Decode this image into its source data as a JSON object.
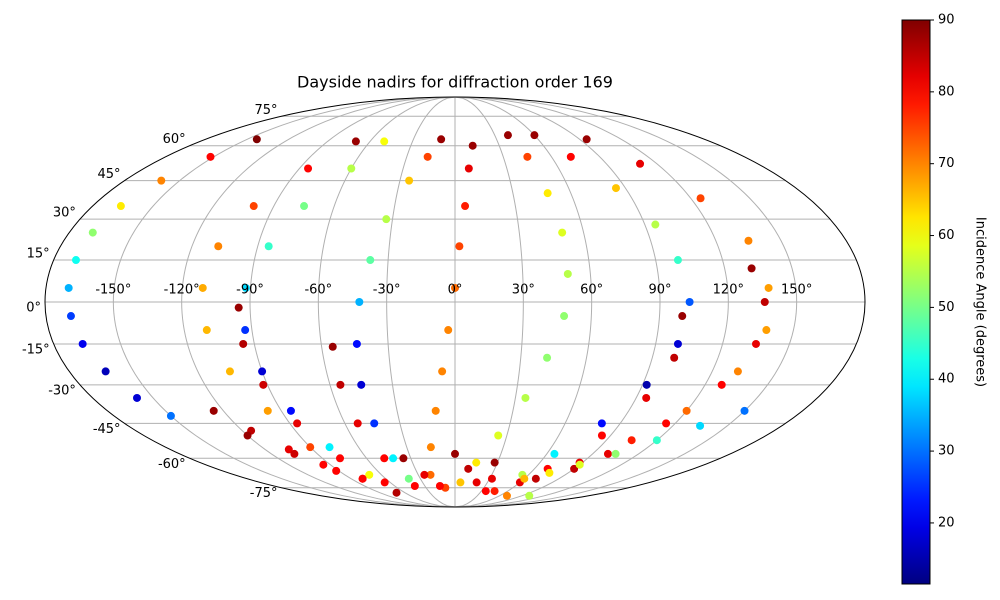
{
  "chart_data": {
    "type": "scatter",
    "projection": "mollweide",
    "title": "Dayside nadirs for diffraction order 169",
    "xlim": [
      -180,
      180
    ],
    "ylim": [
      -90,
      90
    ],
    "xticks": [
      {
        "value": -150,
        "label": "-150°"
      },
      {
        "value": -120,
        "label": "-120°"
      },
      {
        "value": -90,
        "label": "-90°"
      },
      {
        "value": -60,
        "label": "-60°"
      },
      {
        "value": -30,
        "label": "-30°"
      },
      {
        "value": 0,
        "label": "0°"
      },
      {
        "value": 30,
        "label": "30°"
      },
      {
        "value": 60,
        "label": "60°"
      },
      {
        "value": 90,
        "label": "90°"
      },
      {
        "value": 120,
        "label": "120°"
      },
      {
        "value": 150,
        "label": "150°"
      }
    ],
    "yticks": [
      {
        "value": -75,
        "label": "-75°"
      },
      {
        "value": -60,
        "label": "-60°"
      },
      {
        "value": -45,
        "label": "-45°"
      },
      {
        "value": -30,
        "label": "-30°"
      },
      {
        "value": -15,
        "label": "-15°"
      },
      {
        "value": 0,
        "label": "0°"
      },
      {
        "value": 15,
        "label": "15°"
      },
      {
        "value": 30,
        "label": "30°"
      },
      {
        "value": 45,
        "label": "45°"
      },
      {
        "value": 60,
        "label": "60°"
      },
      {
        "value": 75,
        "label": "75°"
      }
    ],
    "grid": true,
    "colormap": "jet",
    "clim": [
      11.5,
      90
    ],
    "cticks": [
      20,
      30,
      40,
      50,
      60,
      70,
      80,
      90
    ],
    "cbar_label": "Incidence Angle (degrees)",
    "series": [
      {
        "x": [
          -143,
          -152,
          -160,
          -166,
          -169,
          -170,
          -170,
          -169,
          -167,
          -163,
          -158,
          -150
        ],
        "values": [
          63,
          55,
          45,
          35,
          25,
          15,
          5,
          -5,
          -15,
          -25,
          -35,
          -42
        ],
        "c": [
          90,
          80,
          70,
          62,
          52,
          42,
          35,
          26,
          20,
          16,
          18,
          30
        ]
      },
      {
        "x": [
          -70,
          -85,
          -100,
          -108,
          -111,
          -110,
          -105,
          -97,
          -90,
          -80,
          -70
        ],
        "values": [
          62,
          50,
          35,
          20,
          5,
          -10,
          -25,
          -40,
          -55,
          -70,
          -78
        ],
        "c": [
          88,
          80,
          75,
          70,
          67,
          66,
          66,
          68,
          75,
          82,
          86
        ]
      },
      {
        "x": [
          -50,
          -60,
          -75,
          -85,
          -92,
          -93,
          -90,
          -85,
          -78,
          -70
        ],
        "values": [
          62,
          50,
          35,
          20,
          5,
          -10,
          -25,
          -40,
          -55,
          -68
        ],
        "c": [
          60,
          55,
          50,
          45,
          38,
          25,
          18,
          22,
          40,
          60
        ]
      },
      {
        "x": [
          -95,
          -95,
          -92,
          -86,
          -78,
          -65
        ],
        "values": [
          -2,
          -15,
          -30,
          -45,
          -60,
          -72
        ],
        "c": [
          88,
          86,
          84,
          82,
          80,
          80
        ]
      },
      {
        "x": [
          -55,
          -55,
          -53,
          -48,
          -40
        ],
        "values": [
          -16,
          -30,
          -45,
          -60,
          -74
        ],
        "c": [
          88,
          85,
          82,
          80,
          80
        ]
      },
      {
        "x": [
          -10,
          -17,
          -25,
          -33,
          -38,
          -42,
          -44,
          -45,
          -44,
          -42,
          -40
        ],
        "values": [
          63,
          55,
          45,
          30,
          15,
          0,
          -15,
          -30,
          -45,
          -60,
          -70
        ],
        "c": [
          88,
          75,
          65,
          55,
          48,
          35,
          22,
          18,
          25,
          40,
          50
        ]
      },
      {
        "x": [
          12,
          8,
          5,
          2,
          0,
          -3,
          -6,
          -10,
          -15,
          -20,
          -10
        ],
        "values": [
          60,
          50,
          35,
          20,
          5,
          -10,
          -25,
          -40,
          -55,
          -68,
          -75
        ],
        "c": [
          88,
          82,
          78,
          75,
          72,
          70,
          70,
          70,
          70,
          72,
          75
        ]
      },
      {
        "x": [
          0,
          10,
          20,
          35
        ],
        "values": [
          -58,
          -65,
          -72,
          -77
        ],
        "c": [
          88,
          85,
          82,
          80
        ]
      },
      {
        "x": [
          40,
          45,
          48,
          50,
          50,
          48,
          42,
          35,
          25,
          15,
          5
        ],
        "values": [
          65,
          55,
          40,
          25,
          10,
          -5,
          -20,
          -35,
          -50,
          -62,
          -72
        ],
        "c": [
          88,
          75,
          62,
          58,
          55,
          52,
          52,
          55,
          58,
          62,
          65
        ]
      },
      {
        "x": [
          28,
          32,
          45,
          70,
          100
        ],
        "values": [
          -62,
          -70,
          -77,
          -80,
          -80
        ],
        "c": [
          88,
          82,
          78,
          70,
          55
        ]
      },
      {
        "x": [
          60,
          72,
          85,
          95,
          100,
          103,
          100,
          92,
          80,
          65,
          55
        ],
        "values": [
          65,
          55,
          42,
          28,
          15,
          0,
          -15,
          -30,
          -45,
          -58,
          -68
        ],
        "c": [
          88,
          80,
          65,
          55,
          45,
          28,
          18,
          15,
          22,
          40,
          55
        ]
      },
      {
        "x": [
          100,
          100,
          95,
          85,
          70,
          60
        ],
        "values": [
          -5,
          -20,
          -35,
          -50,
          -65,
          -72
        ],
        "c": [
          88,
          85,
          82,
          80,
          80,
          82
        ]
      },
      {
        "x": [
          95,
          110,
          125,
          135,
          138,
          138,
          132,
          120,
          105,
          88,
          70
        ],
        "values": [
          63,
          52,
          38,
          22,
          5,
          -10,
          -25,
          -40,
          -52,
          -62,
          -70
        ],
        "c": [
          88,
          82,
          75,
          70,
          68,
          68,
          70,
          72,
          78,
          82,
          85
        ]
      },
      {
        "x": [
          132,
          136,
          135,
          128,
          115,
          100,
          90
        ],
        "values": [
          12,
          0,
          -15,
          -30,
          -45,
          -58,
          -65
        ],
        "c": [
          88,
          85,
          82,
          80,
          80,
          82,
          85
        ]
      },
      {
        "x": [
          150,
          135,
          120,
          105,
          90,
          75,
          60
        ],
        "values": [
          -40,
          -46,
          -52,
          -58,
          -63,
          -67,
          -70
        ],
        "c": [
          30,
          38,
          45,
          52,
          58,
          62,
          66
        ]
      },
      {
        "x": [
          -125,
          -115,
          -105,
          -95,
          -80
        ],
        "values": [
          -40,
          -48,
          -56,
          -63,
          -70
        ],
        "c": [
          88,
          85,
          82,
          80,
          80
        ]
      },
      {
        "x": [
          -120,
          -105,
          -92
        ],
        "values": [
          -50,
          -58,
          -66
        ],
        "c": [
          88,
          84,
          80
        ]
      },
      {
        "x": [
          -35,
          -25,
          -15
        ],
        "values": [
          -60,
          -68,
          -74
        ],
        "c": [
          88,
          82,
          80
        ]
      }
    ]
  }
}
